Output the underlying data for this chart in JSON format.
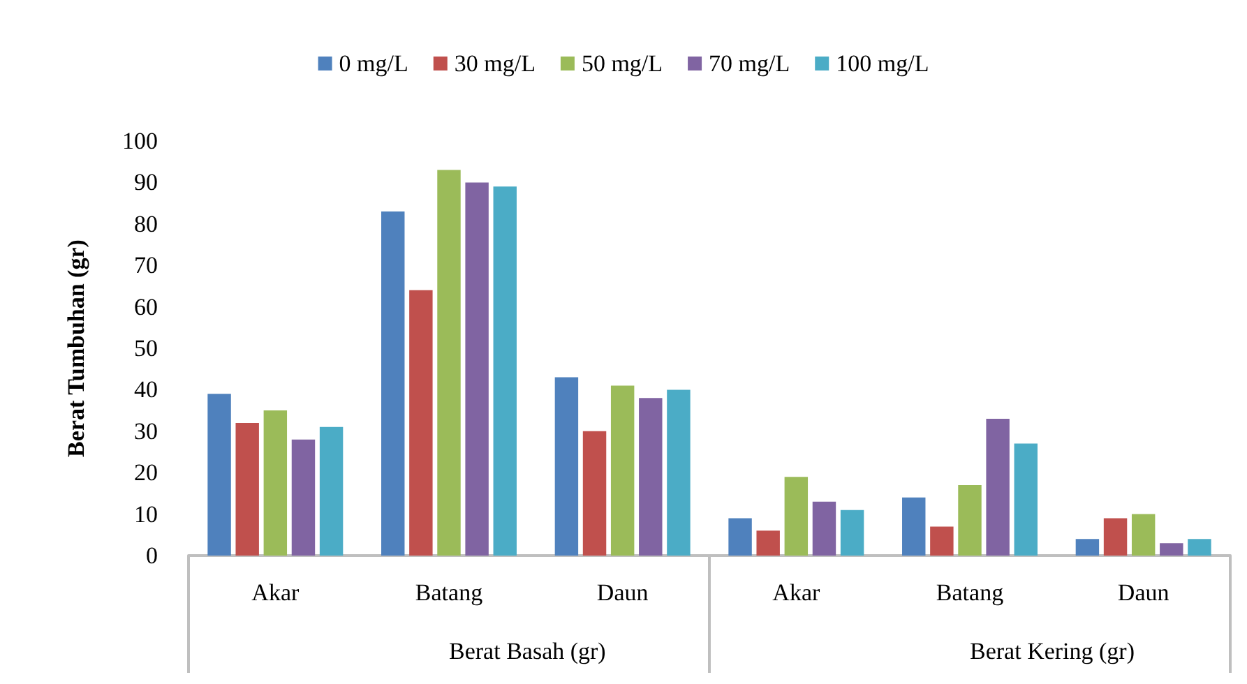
{
  "chart_data": {
    "type": "bar",
    "ylabel": "Berat Tumbuhan (gr)",
    "categories": [
      "Akar",
      "Batang",
      "Daun",
      "Akar",
      "Batang",
      "Daun"
    ],
    "annotations": [
      "Berat Basah (gr)",
      "Berat Kering (gr)"
    ],
    "series": [
      {
        "name": "0 mg/L",
        "color": "#4f81bd",
        "values": [
          39,
          83,
          43,
          9,
          14,
          4
        ]
      },
      {
        "name": "30 mg/L",
        "color": "#c0504d",
        "values": [
          32,
          64,
          30,
          6,
          7,
          9
        ]
      },
      {
        "name": "50 mg/L",
        "color": "#9bbb59",
        "values": [
          35,
          93,
          41,
          19,
          17,
          10
        ]
      },
      {
        "name": "70 mg/L",
        "color": "#8064a2",
        "values": [
          28,
          90,
          38,
          13,
          33,
          3
        ]
      },
      {
        "name": "100 mg/L",
        "color": "#4bacc6",
        "values": [
          31,
          89,
          40,
          11,
          27,
          4
        ]
      }
    ],
    "ylim": [
      0,
      100
    ],
    "yticks": [
      0,
      10,
      20,
      30,
      40,
      50,
      60,
      70,
      80,
      90,
      100
    ],
    "grid": false,
    "legend": "top"
  }
}
